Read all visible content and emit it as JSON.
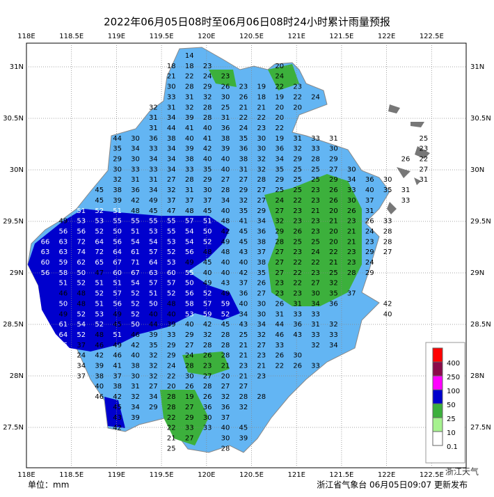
{
  "title": "2022年06月05日08时至06月06日08时24小时累计雨量预报",
  "lon_labels": [
    "118E",
    "118.5E",
    "119E",
    "119.5E",
    "120E",
    "120.5E",
    "121E",
    "121.5E",
    "122E",
    "122.5E"
  ],
  "lat_labels": [
    "31N",
    "30.5N",
    "30N",
    "29.5N",
    "29N",
    "28.5N",
    "28N",
    "27.5N"
  ],
  "station_grid": [
    [
      null,
      null,
      null,
      null,
      null,
      null,
      null,
      null,
      14,
      null,
      null,
      null,
      null,
      null,
      null,
      null,
      null,
      null,
      null,
      null,
      null,
      null
    ],
    [
      null,
      null,
      null,
      null,
      null,
      null,
      null,
      18,
      18,
      23,
      null,
      null,
      null,
      20,
      null,
      null,
      null,
      null,
      null,
      null,
      null,
      null
    ],
    [
      null,
      null,
      null,
      null,
      null,
      null,
      null,
      21,
      22,
      24,
      23,
      null,
      null,
      24,
      null,
      null,
      null,
      null,
      null,
      null,
      null,
      null
    ],
    [
      null,
      null,
      null,
      null,
      null,
      null,
      null,
      30,
      28,
      29,
      26,
      23,
      19,
      22,
      23,
      null,
      null,
      null,
      null,
      null,
      null,
      null
    ],
    [
      null,
      null,
      null,
      null,
      null,
      null,
      null,
      33,
      31,
      32,
      30,
      26,
      18,
      19,
      22,
      24,
      null,
      null,
      null,
      null,
      null,
      null
    ],
    [
      null,
      null,
      null,
      null,
      null,
      null,
      32,
      31,
      32,
      28,
      25,
      21,
      21,
      20,
      20,
      null,
      null,
      null,
      null,
      null,
      null,
      null
    ],
    [
      null,
      null,
      null,
      null,
      null,
      null,
      31,
      34,
      39,
      28,
      31,
      22,
      22,
      20,
      null,
      null,
      null,
      null,
      null,
      null,
      null,
      null
    ],
    [
      null,
      null,
      null,
      null,
      null,
      null,
      31,
      44,
      41,
      40,
      36,
      24,
      23,
      22,
      null,
      null,
      null,
      null,
      null,
      null,
      null,
      null
    ],
    [
      null,
      null,
      null,
      null,
      44,
      30,
      36,
      38,
      40,
      41,
      38,
      35,
      30,
      19,
      31,
      33,
      31,
      null,
      null,
      null,
      null,
      25
    ],
    [
      null,
      null,
      null,
      null,
      35,
      34,
      33,
      34,
      39,
      42,
      39,
      36,
      30,
      36,
      32,
      33,
      30,
      null,
      null,
      null,
      null,
      23
    ],
    [
      null,
      null,
      null,
      null,
      29,
      30,
      34,
      34,
      38,
      40,
      40,
      38,
      32,
      34,
      29,
      28,
      29,
      null,
      null,
      null,
      26,
      22
    ],
    [
      null,
      null,
      null,
      null,
      30,
      33,
      33,
      34,
      33,
      35,
      40,
      31,
      32,
      35,
      25,
      25,
      27,
      30,
      null,
      null,
      null,
      27
    ],
    [
      null,
      null,
      null,
      null,
      32,
      31,
      31,
      27,
      28,
      29,
      27,
      27,
      28,
      29,
      25,
      25,
      29,
      34,
      36,
      30,
      null,
      31
    ],
    [
      null,
      null,
      null,
      45,
      38,
      36,
      34,
      32,
      31,
      30,
      28,
      29,
      27,
      25,
      25,
      23,
      26,
      33,
      40,
      35,
      31,
      null
    ],
    [
      null,
      null,
      null,
      45,
      39,
      42,
      49,
      37,
      37,
      37,
      34,
      32,
      27,
      24,
      22,
      23,
      26,
      30,
      37,
      null,
      33,
      null
    ],
    [
      null,
      null,
      51,
      52,
      51,
      48,
      45,
      47,
      48,
      45,
      40,
      35,
      29,
      27,
      23,
      21,
      20,
      26,
      31,
      null,
      null,
      null
    ],
    [
      null,
      49,
      53,
      53,
      55,
      55,
      55,
      55,
      57,
      51,
      48,
      41,
      34,
      32,
      23,
      23,
      21,
      23,
      26,
      33,
      null,
      null
    ],
    [
      null,
      56,
      56,
      52,
      50,
      51,
      53,
      55,
      54,
      50,
      42,
      45,
      36,
      29,
      26,
      23,
      20,
      21,
      24,
      28,
      null,
      null
    ],
    [
      66,
      63,
      72,
      64,
      56,
      54,
      54,
      53,
      54,
      52,
      49,
      45,
      38,
      28,
      25,
      25,
      20,
      21,
      23,
      28,
      null,
      null
    ],
    [
      63,
      63,
      74,
      72,
      64,
      61,
      57,
      52,
      56,
      48,
      48,
      43,
      37,
      27,
      23,
      24,
      22,
      23,
      29,
      27,
      null,
      null
    ],
    [
      60,
      59,
      62,
      65,
      67,
      71,
      64,
      53,
      49,
      45,
      40,
      40,
      38,
      27,
      22,
      22,
      21,
      23,
      24,
      null,
      null,
      null
    ],
    [
      56,
      58,
      50,
      47,
      60,
      67,
      63,
      60,
      55,
      40,
      40,
      42,
      35,
      27,
      22,
      23,
      25,
      28,
      29,
      null,
      null,
      null
    ],
    [
      null,
      51,
      52,
      51,
      51,
      54,
      57,
      57,
      50,
      49,
      43,
      37,
      26,
      23,
      22,
      27,
      32,
      null,
      null,
      null,
      null,
      null
    ],
    [
      null,
      46,
      48,
      52,
      57,
      52,
      51,
      52,
      56,
      52,
      49,
      36,
      27,
      23,
      23,
      30,
      35,
      37,
      null,
      null,
      null,
      null
    ],
    [
      null,
      50,
      48,
      51,
      56,
      52,
      50,
      48,
      58,
      57,
      59,
      40,
      30,
      26,
      31,
      34,
      36,
      null,
      null,
      42,
      null,
      null
    ],
    [
      null,
      49,
      52,
      53,
      49,
      52,
      40,
      40,
      53,
      59,
      52,
      34,
      30,
      31,
      33,
      33,
      null,
      null,
      null,
      40,
      null,
      null
    ],
    [
      null,
      61,
      54,
      52,
      45,
      50,
      44,
      39,
      40,
      42,
      45,
      43,
      34,
      44,
      36,
      31,
      32,
      null,
      null,
      null,
      null,
      null
    ],
    [
      null,
      64,
      52,
      48,
      51,
      46,
      39,
      33,
      29,
      32,
      28,
      25,
      32,
      46,
      43,
      33,
      33,
      null,
      null,
      null,
      null,
      null
    ],
    [
      null,
      55,
      37,
      46,
      49,
      42,
      35,
      29,
      27,
      28,
      28,
      21,
      27,
      33,
      null,
      32,
      34,
      null,
      null,
      null,
      null,
      null
    ],
    [
      null,
      null,
      24,
      42,
      46,
      40,
      32,
      29,
      24,
      26,
      28,
      21,
      23,
      26,
      30,
      null,
      null,
      null,
      null,
      null,
      null,
      null
    ],
    [
      null,
      null,
      34,
      39,
      41,
      38,
      32,
      24,
      28,
      23,
      21,
      23,
      21,
      22,
      26,
      33,
      null,
      null,
      null,
      null,
      null,
      null
    ],
    [
      null,
      null,
      37,
      38,
      37,
      30,
      32,
      22,
      30,
      27,
      20,
      21,
      23,
      null,
      null,
      null,
      null,
      null,
      null,
      null,
      null,
      null
    ],
    [
      null,
      null,
      null,
      40,
      38,
      31,
      27,
      20,
      26,
      28,
      27,
      27,
      null,
      null,
      null,
      null,
      null,
      null,
      null,
      null,
      null,
      null
    ],
    [
      null,
      null,
      null,
      46,
      42,
      32,
      34,
      28,
      19,
      26,
      32,
      28,
      28,
      null,
      null,
      null,
      null,
      null,
      null,
      null,
      null,
      null
    ],
    [
      null,
      null,
      null,
      51,
      45,
      34,
      29,
      28,
      27,
      36,
      36,
      32,
      null,
      null,
      null,
      null,
      null,
      null,
      null,
      null,
      null,
      null
    ],
    [
      null,
      null,
      null,
      55,
      43,
      39,
      null,
      22,
      29,
      30,
      37,
      null,
      null,
      null,
      null,
      null,
      null,
      null,
      null,
      null,
      null,
      null
    ],
    [
      null,
      null,
      null,
      53,
      42,
      null,
      null,
      22,
      33,
      33,
      40,
      45,
      null,
      null,
      null,
      null,
      null,
      null,
      null,
      null,
      null,
      null
    ],
    [
      null,
      null,
      null,
      null,
      null,
      null,
      null,
      21,
      27,
      null,
      30,
      39,
      null,
      null,
      null,
      null,
      null,
      null,
      null,
      null,
      null,
      null
    ],
    [
      null,
      null,
      null,
      null,
      null,
      null,
      null,
      25,
      null,
      null,
      28,
      null,
      null,
      null,
      null,
      null,
      null,
      null,
      null,
      null,
      null,
      null
    ]
  ],
  "legend": [
    {
      "label": 400,
      "color": "#ff0000"
    },
    {
      "label": 250,
      "color": "#8b0a4a"
    },
    {
      "label": 100,
      "color": "#ff00ff"
    },
    {
      "label": 50,
      "color": "#0000cd"
    },
    {
      "label": 25,
      "color": "#3cb03c"
    },
    {
      "label": 10,
      "color": "#a6f28f"
    },
    {
      "label": 0.1,
      "color": "#ffffff"
    }
  ],
  "unit": "单位：mm",
  "footer": "浙江省气象台 06月05日09:07 更新发布",
  "watermark": "浙江天气"
}
